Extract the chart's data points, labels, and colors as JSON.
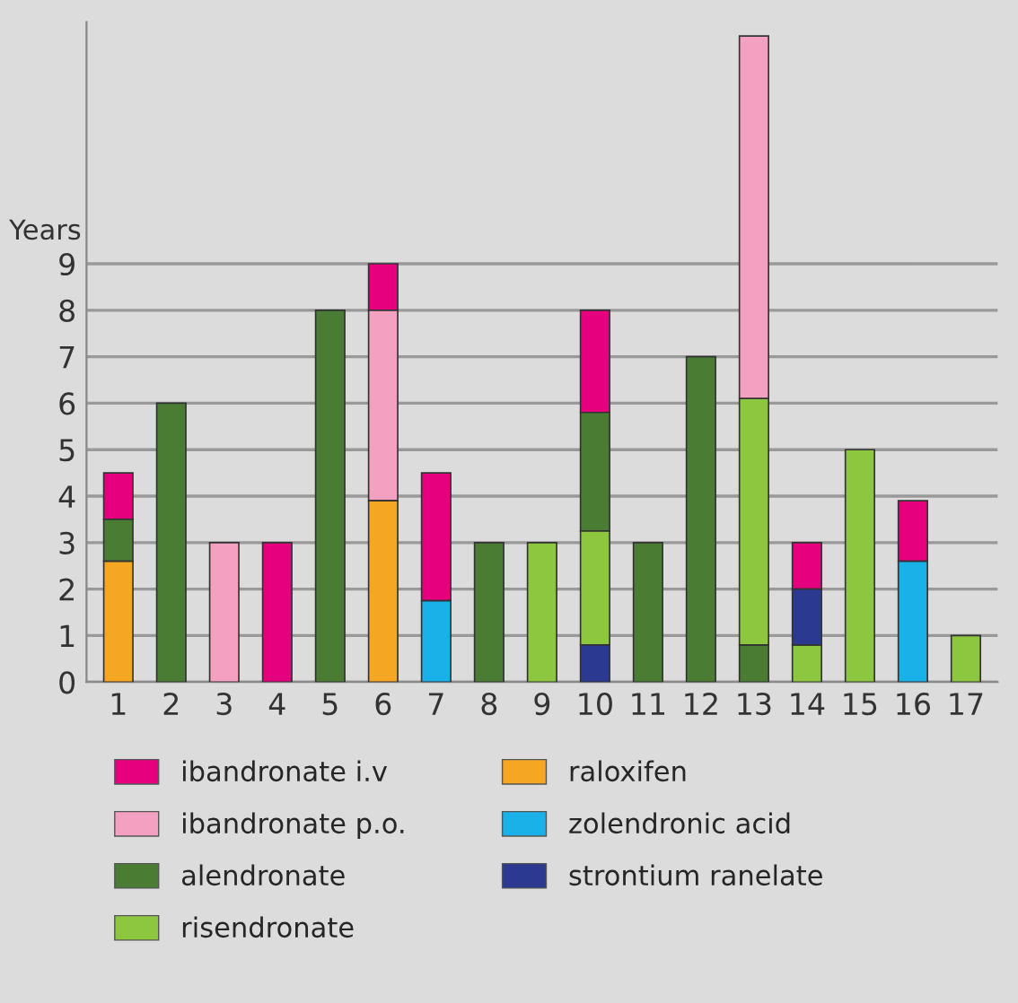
{
  "chart_data": {
    "type": "bar",
    "ylabel": "Years",
    "categories": [
      "1",
      "2",
      "3",
      "4",
      "5",
      "6",
      "7",
      "8",
      "9",
      "10",
      "11",
      "12",
      "13",
      "14",
      "15",
      "16",
      "17"
    ],
    "series": [
      {
        "name": "ibandronate i.v",
        "color": "#e6007e",
        "values": [
          1.0,
          null,
          null,
          3,
          null,
          1.0,
          2.75,
          null,
          null,
          2.2,
          null,
          null,
          null,
          1.0,
          null,
          1.3,
          null
        ],
        "base": [
          3.5,
          null,
          null,
          0,
          null,
          8,
          1.75,
          null,
          null,
          5.8,
          null,
          null,
          null,
          2.0,
          null,
          2.6,
          null
        ]
      },
      {
        "name": "ibandronate p.o.",
        "color": "#f4a0c0",
        "values": [
          null,
          null,
          3,
          null,
          null,
          4.1,
          null,
          null,
          null,
          null,
          null,
          null,
          7.8,
          null,
          null,
          null,
          null
        ],
        "base": [
          null,
          null,
          0,
          null,
          null,
          3.9,
          null,
          null,
          null,
          null,
          null,
          null,
          6.1,
          null,
          null,
          null,
          null
        ]
      },
      {
        "name": "alendronate",
        "color": "#4a7c34",
        "values": [
          0.9,
          6,
          null,
          null,
          8,
          null,
          null,
          3,
          null,
          2.55,
          3,
          7,
          0.8,
          null,
          null,
          null,
          null
        ],
        "base": [
          2.6,
          0,
          null,
          null,
          0,
          null,
          null,
          0,
          null,
          3.25,
          0,
          0,
          0,
          null,
          null,
          null,
          null
        ]
      },
      {
        "name": "risendronate",
        "color": "#8dc63f",
        "values": [
          null,
          null,
          null,
          null,
          null,
          null,
          null,
          null,
          3,
          2.45,
          null,
          null,
          5.3,
          0.8,
          5,
          null,
          1
        ],
        "base": [
          null,
          null,
          null,
          null,
          null,
          null,
          null,
          null,
          0,
          0.8,
          null,
          null,
          0.8,
          0,
          0,
          null,
          0
        ]
      },
      {
        "name": "raloxifen",
        "color": "#f5a623",
        "values": [
          2.6,
          null,
          null,
          null,
          null,
          3.9,
          null,
          null,
          null,
          null,
          null,
          null,
          null,
          null,
          null,
          null,
          null
        ],
        "base": [
          0,
          null,
          null,
          null,
          null,
          0,
          null,
          null,
          null,
          null,
          null,
          null,
          null,
          null,
          null,
          null,
          null
        ]
      },
      {
        "name": "zolendronic acid",
        "color": "#1ab0e8",
        "values": [
          null,
          null,
          null,
          null,
          null,
          null,
          1.75,
          null,
          null,
          null,
          null,
          null,
          null,
          null,
          null,
          2.6,
          null
        ],
        "base": [
          null,
          null,
          null,
          null,
          null,
          null,
          0,
          null,
          null,
          null,
          null,
          null,
          null,
          null,
          null,
          0,
          null
        ]
      },
      {
        "name": "strontium ranelate",
        "color": "#2b3990",
        "values": [
          null,
          null,
          null,
          null,
          null,
          null,
          null,
          null,
          null,
          0.8,
          null,
          null,
          null,
          1.2,
          null,
          null,
          null
        ],
        "base": [
          null,
          null,
          null,
          null,
          null,
          null,
          null,
          null,
          null,
          0,
          null,
          null,
          null,
          0.8,
          null,
          null,
          null
        ]
      }
    ],
    "ylim": [
      0,
      14.2
    ],
    "yticks": [
      0,
      1,
      2,
      3,
      4,
      5,
      6,
      7,
      8,
      9
    ],
    "grid": "y",
    "legend": "bottom"
  }
}
